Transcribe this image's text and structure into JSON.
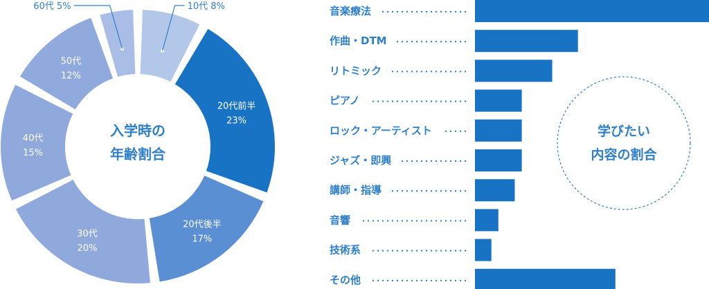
{
  "colors": {
    "text": "#2f7fc9",
    "bar": "#1873c5",
    "dotted_circle": "#2f7fc9",
    "slices": [
      "#b3c7e8",
      "#1873c5",
      "#5b8fd3",
      "#8fa9dc",
      "#90a9dc",
      "#91aadd",
      "#a9bde6"
    ]
  },
  "chart_data": [
    {
      "type": "pie",
      "title_lines": [
        "入学時の",
        "年齢割合"
      ],
      "slices": [
        {
          "label": "10代",
          "pct_text": "8%",
          "value": 8,
          "outside": true,
          "outside_text": "10代 8%"
        },
        {
          "label": "20代前半",
          "pct_text": "23%",
          "value": 23,
          "outside": false
        },
        {
          "label": "20代後半",
          "pct_text": "17%",
          "value": 17,
          "outside": false
        },
        {
          "label": "30代",
          "pct_text": "20%",
          "value": 20,
          "outside": false
        },
        {
          "label": "40代",
          "pct_text": "15%",
          "value": 15,
          "outside": false
        },
        {
          "label": "50代",
          "pct_text": "12%",
          "value": 12,
          "outside": false
        },
        {
          "label": "60代",
          "pct_text": "5%",
          "value": 5,
          "outside": true,
          "outside_text": "60代 5%"
        }
      ]
    },
    {
      "type": "bar",
      "title_lines": [
        "学びたい",
        "内容の割合"
      ],
      "categories": [
        "音楽療法",
        "作曲・DTM",
        "リトミック",
        "ピアノ",
        "ロック・アーティスト",
        "ジャズ・即興",
        "講師・指導",
        "音響",
        "技術系",
        "その他"
      ],
      "values": [
        100,
        44,
        33,
        20,
        20,
        20,
        17,
        10,
        7,
        60
      ]
    }
  ]
}
